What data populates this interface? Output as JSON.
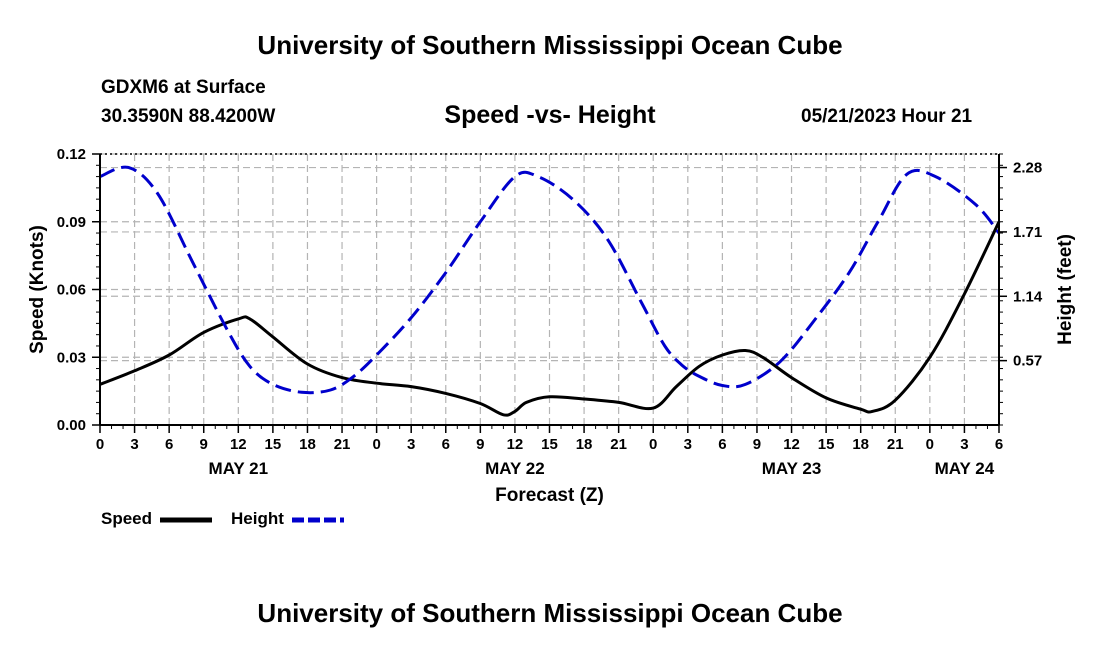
{
  "header": {
    "title": "University of Southern Mississippi Ocean Cube",
    "station": "GDXM6 at Surface",
    "coords": "30.3590N  88.4200W",
    "chart_title": "Speed -vs- Height",
    "date": "05/21/2023 Hour 21",
    "footer_title": "University of Southern Mississippi Ocean Cube"
  },
  "legend": {
    "speed_label": "Speed",
    "height_label": "Height"
  },
  "colors": {
    "speed": "#000000",
    "height": "#0000cc",
    "grid": "#b4b4b4"
  },
  "chart_data": {
    "type": "line",
    "title": "Speed -vs- Height",
    "xlabel": "Forecast (Z)",
    "ylabel": "Speed (Knots)",
    "y2label": "Height (feet)",
    "xlim": [
      0,
      78
    ],
    "ylim": [
      0,
      0.12
    ],
    "y2lim": [
      0,
      2.4
    ],
    "x_ticks": [
      0,
      3,
      6,
      9,
      12,
      15,
      18,
      21,
      24,
      27,
      30,
      33,
      36,
      39,
      42,
      45,
      48,
      51,
      54,
      57,
      60,
      63,
      66,
      69,
      72,
      75,
      78
    ],
    "x_tick_labels": [
      "0",
      "3",
      "6",
      "9",
      "12",
      "15",
      "18",
      "21",
      "0",
      "3",
      "6",
      "9",
      "12",
      "15",
      "18",
      "21",
      "0",
      "3",
      "6",
      "9",
      "12",
      "15",
      "18",
      "21",
      "0",
      "3",
      "6"
    ],
    "day_labels": [
      {
        "x": 12,
        "label": "MAY 21"
      },
      {
        "x": 36,
        "label": "MAY 22"
      },
      {
        "x": 60,
        "label": "MAY 23"
      },
      {
        "x": 75,
        "label": "MAY 24"
      }
    ],
    "y_ticks": [
      0,
      0.03,
      0.06,
      0.09,
      0.12
    ],
    "y_tick_labels": [
      "0.00",
      "0.03",
      "0.06",
      "0.09",
      "0.12"
    ],
    "y2_ticks": [
      0.57,
      1.14,
      1.71,
      2.28
    ],
    "y2_tick_labels": [
      "0.57",
      "1.14",
      "1.71",
      "2.28"
    ],
    "grid": true,
    "series": [
      {
        "name": "Speed",
        "axis": "left",
        "style": "solid",
        "x": [
          0,
          3,
          6,
          9,
          12,
          13,
          15,
          18,
          21,
          24,
          27,
          30,
          33,
          35,
          36,
          37,
          39,
          42,
          45,
          48,
          50,
          52,
          54,
          56,
          57.5,
          60,
          63,
          66,
          67,
          69,
          72,
          75,
          78
        ],
        "y": [
          0.018,
          0.024,
          0.031,
          0.041,
          0.047,
          0.047,
          0.039,
          0.027,
          0.021,
          0.0185,
          0.017,
          0.014,
          0.0095,
          0.0045,
          0.006,
          0.01,
          0.0125,
          0.0115,
          0.01,
          0.0075,
          0.017,
          0.026,
          0.031,
          0.033,
          0.03,
          0.021,
          0.012,
          0.007,
          0.006,
          0.011,
          0.03,
          0.058,
          0.09
        ]
      },
      {
        "name": "Height",
        "axis": "right",
        "style": "dashed",
        "x": [
          0,
          2.5,
          5,
          8,
          11,
          13,
          15,
          17.5,
          20,
          22,
          24,
          27,
          30,
          33,
          36,
          38,
          41,
          44,
          47,
          49,
          50.5,
          52,
          54,
          56,
          59,
          62,
          65,
          67.5,
          70,
          72.5,
          76,
          78
        ],
        "y": [
          2.2,
          2.28,
          2.05,
          1.45,
          0.85,
          0.52,
          0.36,
          0.29,
          0.31,
          0.43,
          0.62,
          0.95,
          1.35,
          1.8,
          2.2,
          2.2,
          2.0,
          1.65,
          1.08,
          0.7,
          0.53,
          0.43,
          0.35,
          0.36,
          0.56,
          0.93,
          1.35,
          1.8,
          2.22,
          2.2,
          1.95,
          1.7
        ]
      }
    ]
  }
}
